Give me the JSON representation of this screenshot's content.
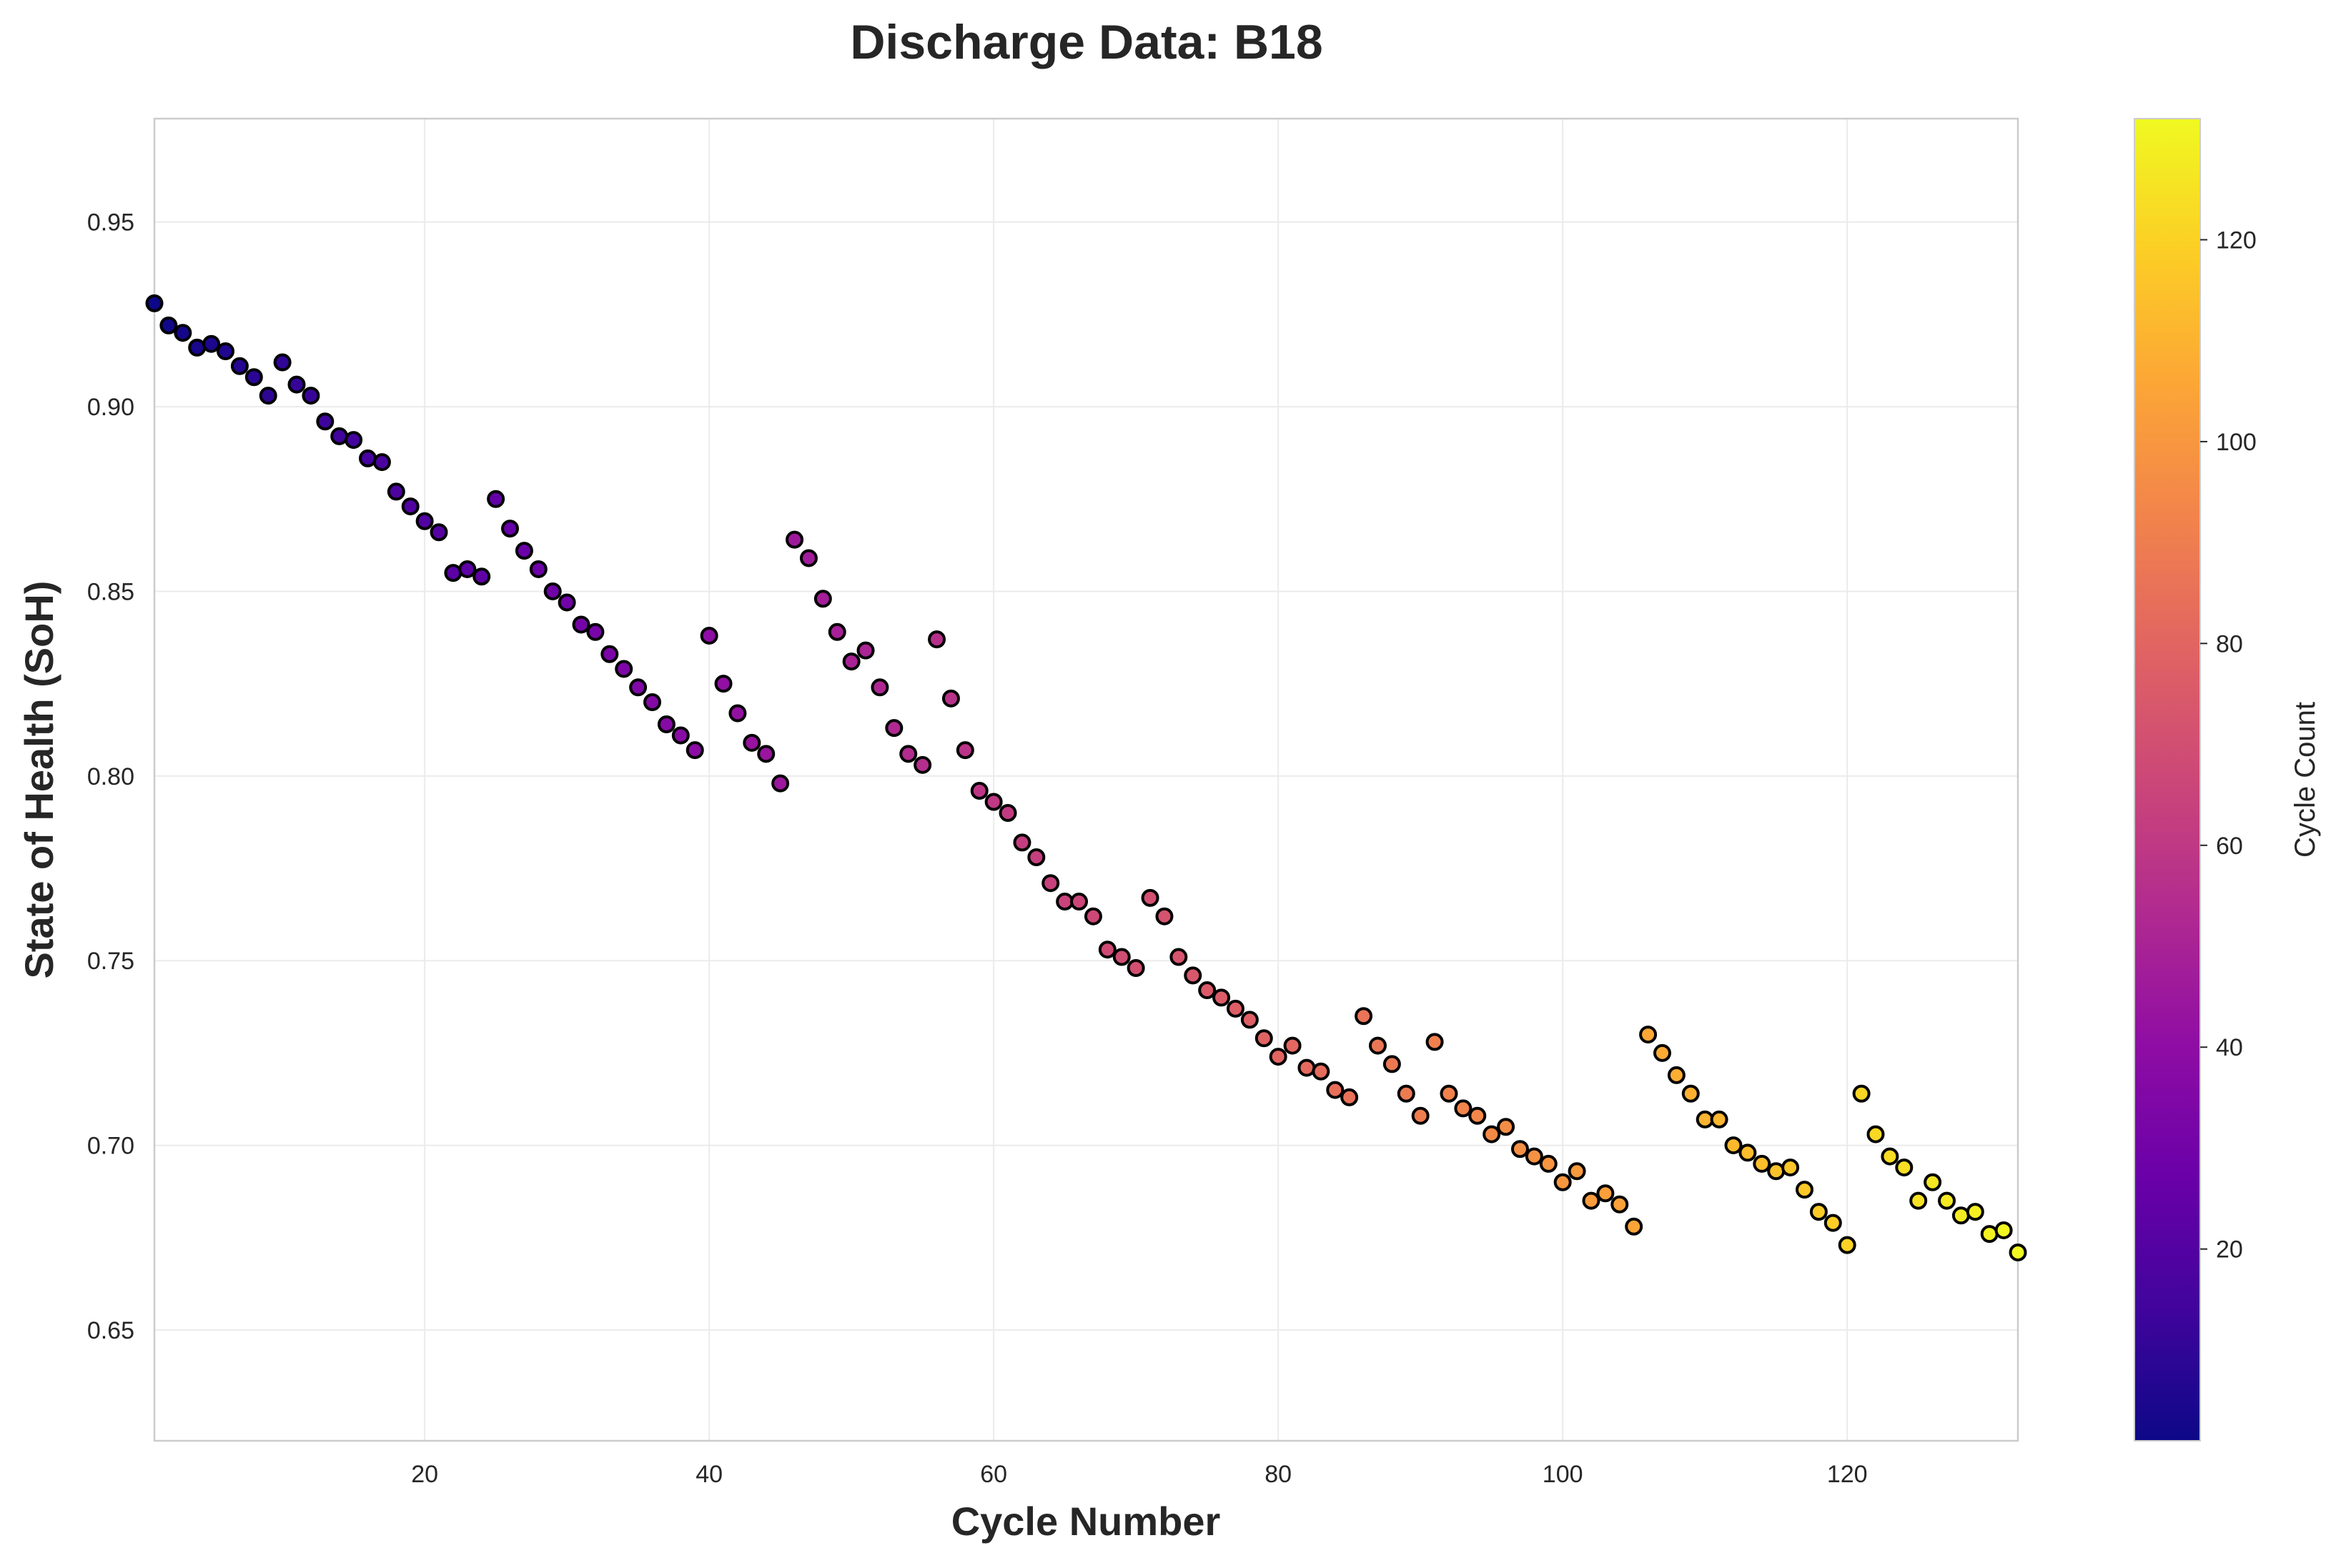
{
  "chart_data": {
    "type": "scatter",
    "title": "Discharge Data: B18",
    "xlabel": "Cycle Number",
    "ylabel": "State of Health (SoH)",
    "xlim": [
      1,
      132
    ],
    "ylim": [
      0.62,
      0.978
    ],
    "x_ticks": [
      20,
      40,
      60,
      80,
      100,
      120
    ],
    "y_ticks": [
      0.65,
      0.7,
      0.75,
      0.8,
      0.85,
      0.9,
      0.95
    ],
    "x_tick_labels": [
      "20",
      "40",
      "60",
      "80",
      "100",
      "120"
    ],
    "y_tick_labels": [
      "0.65",
      "0.70",
      "0.75",
      "0.80",
      "0.85",
      "0.90",
      "0.95"
    ],
    "grid": true,
    "colormap": "plasma",
    "point_edge_color": "#000000",
    "colorbar": {
      "label": "Cycle Count",
      "range": [
        1,
        132
      ],
      "ticks": [
        20,
        40,
        60,
        80,
        100,
        120
      ],
      "tick_labels": [
        "20",
        "40",
        "60",
        "80",
        "100",
        "120"
      ]
    },
    "x": [
      1,
      2,
      3,
      4,
      5,
      6,
      7,
      8,
      9,
      10,
      11,
      12,
      13,
      14,
      15,
      16,
      17,
      18,
      19,
      20,
      21,
      22,
      23,
      24,
      25,
      26,
      27,
      28,
      29,
      30,
      31,
      32,
      33,
      34,
      35,
      36,
      37,
      38,
      39,
      40,
      41,
      42,
      43,
      44,
      45,
      46,
      47,
      48,
      49,
      50,
      51,
      52,
      53,
      54,
      55,
      56,
      57,
      58,
      59,
      60,
      61,
      62,
      63,
      64,
      65,
      66,
      67,
      68,
      69,
      70,
      71,
      72,
      73,
      74,
      75,
      76,
      77,
      78,
      79,
      80,
      81,
      82,
      83,
      84,
      85,
      86,
      87,
      88,
      89,
      90,
      91,
      92,
      93,
      94,
      95,
      96,
      97,
      98,
      99,
      100,
      101,
      102,
      103,
      104,
      105,
      106,
      107,
      108,
      109,
      110,
      111,
      112,
      113,
      114,
      115,
      116,
      117,
      118,
      119,
      120,
      121,
      122,
      123,
      124,
      125,
      126,
      127,
      128,
      129,
      130,
      131,
      132
    ],
    "y": [
      0.928,
      0.922,
      0.92,
      0.916,
      0.917,
      0.915,
      0.911,
      0.908,
      0.903,
      0.912,
      0.906,
      0.903,
      0.896,
      0.892,
      0.891,
      0.886,
      0.885,
      0.877,
      0.873,
      0.869,
      0.866,
      0.855,
      0.856,
      0.854,
      0.875,
      0.867,
      0.861,
      0.856,
      0.85,
      0.847,
      0.841,
      0.839,
      0.833,
      0.829,
      0.824,
      0.82,
      0.814,
      0.811,
      0.807,
      0.838,
      0.825,
      0.817,
      0.809,
      0.806,
      0.798,
      0.864,
      0.859,
      0.848,
      0.839,
      0.831,
      0.834,
      0.824,
      0.813,
      0.806,
      0.803,
      0.837,
      0.821,
      0.807,
      0.796,
      0.793,
      0.79,
      0.782,
      0.778,
      0.771,
      0.766,
      0.766,
      0.762,
      0.753,
      0.751,
      0.748,
      0.767,
      0.762,
      0.751,
      0.746,
      0.742,
      0.74,
      0.737,
      0.734,
      0.729,
      0.724,
      0.727,
      0.721,
      0.72,
      0.715,
      0.713,
      0.735,
      0.727,
      0.722,
      0.714,
      0.708,
      0.728,
      0.714,
      0.71,
      0.708,
      0.703,
      0.705,
      0.699,
      0.697,
      0.695,
      0.69,
      0.693,
      0.685,
      0.687,
      0.684,
      0.678,
      0.73,
      0.725,
      0.719,
      0.714,
      0.707,
      0.707,
      0.7,
      0.698,
      0.695,
      0.693,
      0.694,
      0.688,
      0.682,
      0.679,
      0.673,
      0.714,
      0.703,
      0.697,
      0.694,
      0.685,
      0.69,
      0.685,
      0.681,
      0.682,
      0.676,
      0.677,
      0.671
    ]
  }
}
